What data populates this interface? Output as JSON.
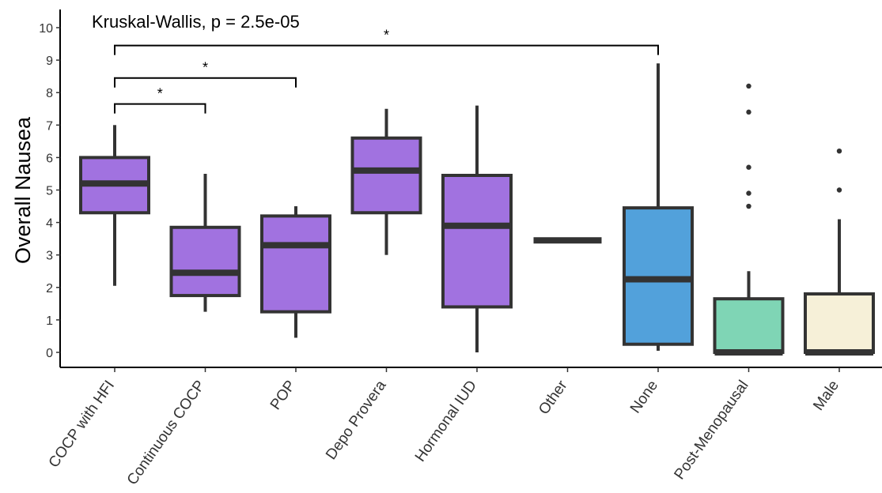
{
  "chart_data": {
    "type": "boxplot",
    "title": "",
    "ylabel": "Overall Nausea",
    "xlabel": "",
    "ylim": [
      0,
      10
    ],
    "yticks": [
      0,
      1,
      2,
      3,
      4,
      5,
      6,
      7,
      8,
      9,
      10
    ],
    "grid": false,
    "test_label": "Kruskal-Wallis, p = 2.5e-05",
    "categories": [
      "COCP with HFI",
      "Continuous COCP",
      "POP",
      "Depo Provera",
      "Hormonal IUD",
      "Other",
      "None",
      "Post-Menopausal",
      "Male"
    ],
    "boxes": [
      {
        "category": "COCP with HFI",
        "min": 2.05,
        "q1": 4.3,
        "median": 5.2,
        "q3": 6.0,
        "max": 7.0,
        "outliers": [],
        "color": "#a172e0"
      },
      {
        "category": "Continuous COCP",
        "min": 1.25,
        "q1": 1.75,
        "median": 2.45,
        "q3": 3.85,
        "max": 5.5,
        "outliers": [],
        "color": "#a172e0"
      },
      {
        "category": "POP",
        "min": 0.45,
        "q1": 1.25,
        "median": 3.3,
        "q3": 4.2,
        "max": 4.5,
        "outliers": [],
        "color": "#a172e0"
      },
      {
        "category": "Depo Provera",
        "min": 3.0,
        "q1": 4.3,
        "median": 5.6,
        "q3": 6.6,
        "max": 7.5,
        "outliers": [],
        "color": "#a172e0"
      },
      {
        "category": "Hormonal IUD",
        "min": 0.0,
        "q1": 1.4,
        "median": 3.9,
        "q3": 5.45,
        "max": 7.6,
        "outliers": [],
        "color": "#a172e0"
      },
      {
        "category": "Other",
        "min": 3.45,
        "q1": 3.45,
        "median": 3.45,
        "q3": 3.45,
        "max": 3.45,
        "outliers": [],
        "color": "#a172e0"
      },
      {
        "category": "None",
        "min": 0.05,
        "q1": 0.25,
        "median": 2.25,
        "q3": 4.45,
        "max": 8.9,
        "outliers": [],
        "color": "#52a1db"
      },
      {
        "category": "Post-Menopausal",
        "min": 0.0,
        "q1": 0.0,
        "median": 0.0,
        "q3": 1.65,
        "max": 2.5,
        "outliers": [
          4.5,
          4.9,
          5.7,
          7.4,
          8.2
        ],
        "color": "#7fd5b5"
      },
      {
        "category": "Male",
        "min": 0.0,
        "q1": 0.0,
        "median": 0.0,
        "q3": 1.8,
        "max": 4.1,
        "outliers": [
          5.0,
          6.2
        ],
        "color": "#f6f0d8"
      }
    ],
    "comparisons": [
      {
        "from": "COCP with HFI",
        "to": "Continuous COCP",
        "y": 7.65,
        "label": "*"
      },
      {
        "from": "COCP with HFI",
        "to": "POP",
        "y": 8.45,
        "label": "*"
      },
      {
        "from": "COCP with HFI",
        "to": "None",
        "y": 9.45,
        "label": "*"
      }
    ],
    "colors": {
      "purple": "#a172e0",
      "blue": "#52a1db",
      "mint": "#7fd5b5",
      "cream": "#f6f0d8",
      "stroke": "#333333"
    }
  }
}
